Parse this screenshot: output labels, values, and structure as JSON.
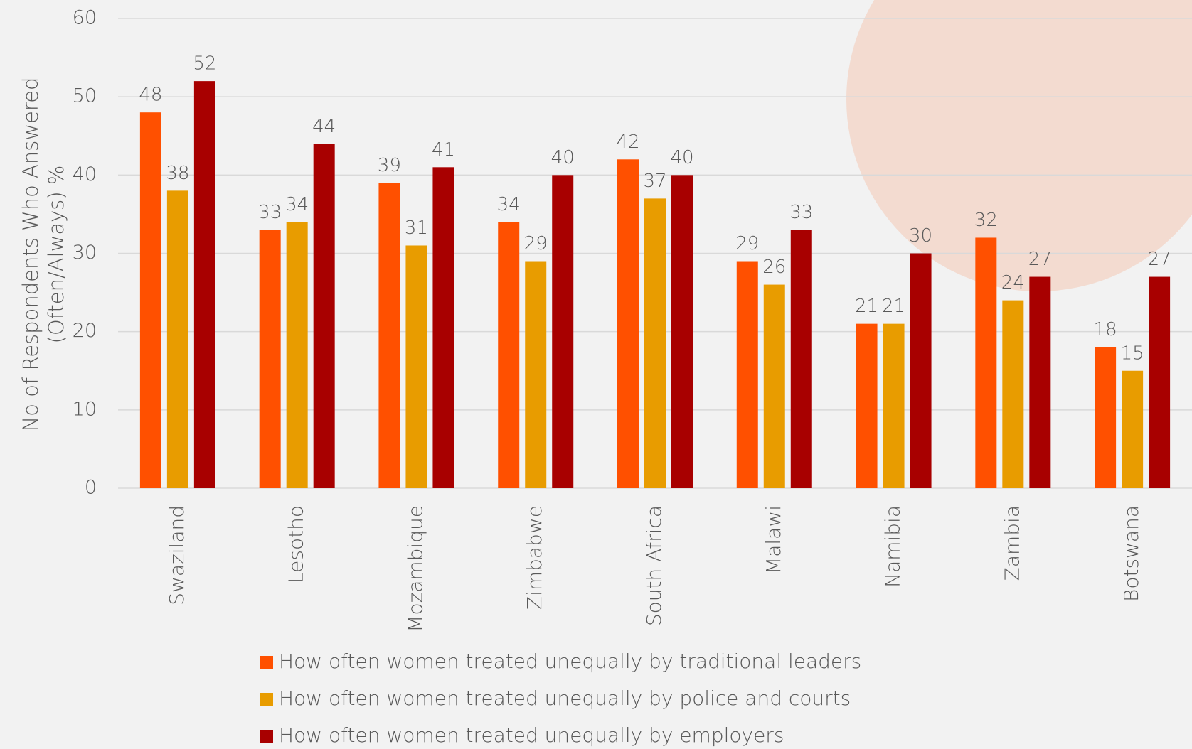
{
  "chart_data": {
    "type": "bar",
    "ylabel": [
      "No of Respondents Who Answered",
      "(Often/Always) %"
    ],
    "categories": [
      "Swaziland",
      "Lesotho",
      "Mozambique",
      "Zimbabwe",
      "South Africa",
      "Malawi",
      "Namibia",
      "Zambia",
      "Botswana"
    ],
    "series": [
      {
        "name": "How often women treated unequally by traditional leaders",
        "color": "#ff5000",
        "values": [
          48,
          33,
          39,
          34,
          42,
          29,
          21,
          32,
          18
        ]
      },
      {
        "name": "How often women treated unequally by police and courts",
        "color": "#e89c00",
        "values": [
          38,
          34,
          31,
          29,
          37,
          26,
          21,
          24,
          15
        ]
      },
      {
        "name": "How often women treated unequally by employers",
        "color": "#a80000",
        "values": [
          52,
          44,
          41,
          40,
          40,
          33,
          30,
          27,
          27
        ]
      }
    ],
    "ylim": [
      0,
      60
    ],
    "yticks": [
      0,
      10,
      20,
      30,
      40,
      50,
      60
    ],
    "grid": true,
    "legend": "bottom"
  }
}
